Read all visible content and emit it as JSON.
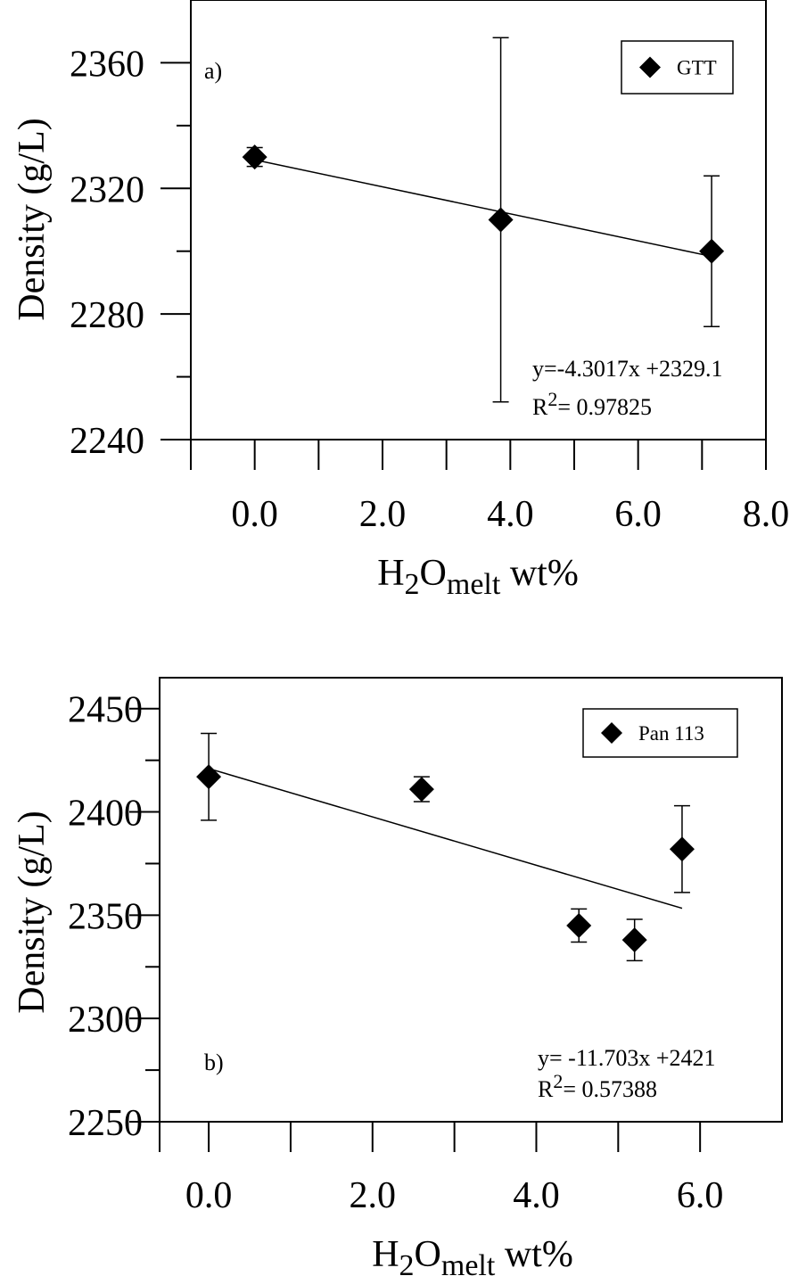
{
  "chart_data": [
    {
      "type": "scatter",
      "panel_label": "a)",
      "x_tick_labels": [
        "0.0",
        "2.0",
        "4.0",
        "6.0",
        "8.0"
      ],
      "y_tick_labels": [
        "2240",
        "2280",
        "2320",
        "2360"
      ],
      "xlim": [
        -1.0,
        8.0
      ],
      "ylim": [
        2240,
        2380
      ],
      "ylabel": "Density (g/L)",
      "xlabel": {
        "main": "H",
        "sub": "2",
        "main2": "O",
        "sub2": "melt",
        "tail": " wt%"
      },
      "series": [
        {
          "name": "GTT",
          "points": [
            {
              "x": 0.0,
              "y": 2330,
              "err_low": 2327,
              "err_high": 2333
            },
            {
              "x": 3.85,
              "y": 2310,
              "err_low": 2252,
              "err_high": 2368
            },
            {
              "x": 7.15,
              "y": 2300,
              "err_low": 2276,
              "err_high": 2324
            }
          ]
        }
      ],
      "fit": {
        "x_start": 0.0,
        "x_end": 7.15,
        "slope": -4.3017,
        "intercept": 2329.1
      },
      "equation": {
        "line1": "y=-4.3017x +2329.1",
        "r_prefix": "R",
        "r_sup": "2",
        "r_rest": "= 0.97825"
      },
      "grid": false,
      "legend_position": "top-right"
    },
    {
      "type": "scatter",
      "panel_label": "b)",
      "x_tick_labels": [
        "0.0",
        "2.0",
        "4.0",
        "6.0"
      ],
      "y_tick_labels": [
        "2250",
        "2300",
        "2350",
        "2400",
        "2450"
      ],
      "xlim": [
        -0.6,
        7.0
      ],
      "ylim": [
        2250,
        2465
      ],
      "ylabel": "Density (g/L)",
      "xlabel": {
        "main": "H",
        "sub": "2",
        "main2": "O",
        "sub2": "melt",
        "tail": " wt%"
      },
      "series": [
        {
          "name": "Pan 113",
          "points": [
            {
              "x": 0.0,
              "y": 2417,
              "err_low": 2396,
              "err_high": 2438
            },
            {
              "x": 2.6,
              "y": 2411,
              "err_low": 2405,
              "err_high": 2417
            },
            {
              "x": 4.52,
              "y": 2345,
              "err_low": 2337,
              "err_high": 2353
            },
            {
              "x": 5.2,
              "y": 2338,
              "err_low": 2328,
              "err_high": 2348
            },
            {
              "x": 5.78,
              "y": 2382,
              "err_low": 2361,
              "err_high": 2403
            }
          ]
        }
      ],
      "fit": {
        "x_start": 0.0,
        "x_end": 5.78,
        "slope": -11.703,
        "intercept": 2421
      },
      "equation": {
        "line1": "y= -11.703x +2421",
        "r_prefix": "R",
        "r_sup": "2",
        "r_rest": "= 0.57388"
      },
      "grid": false,
      "legend_position": "top-right"
    }
  ]
}
